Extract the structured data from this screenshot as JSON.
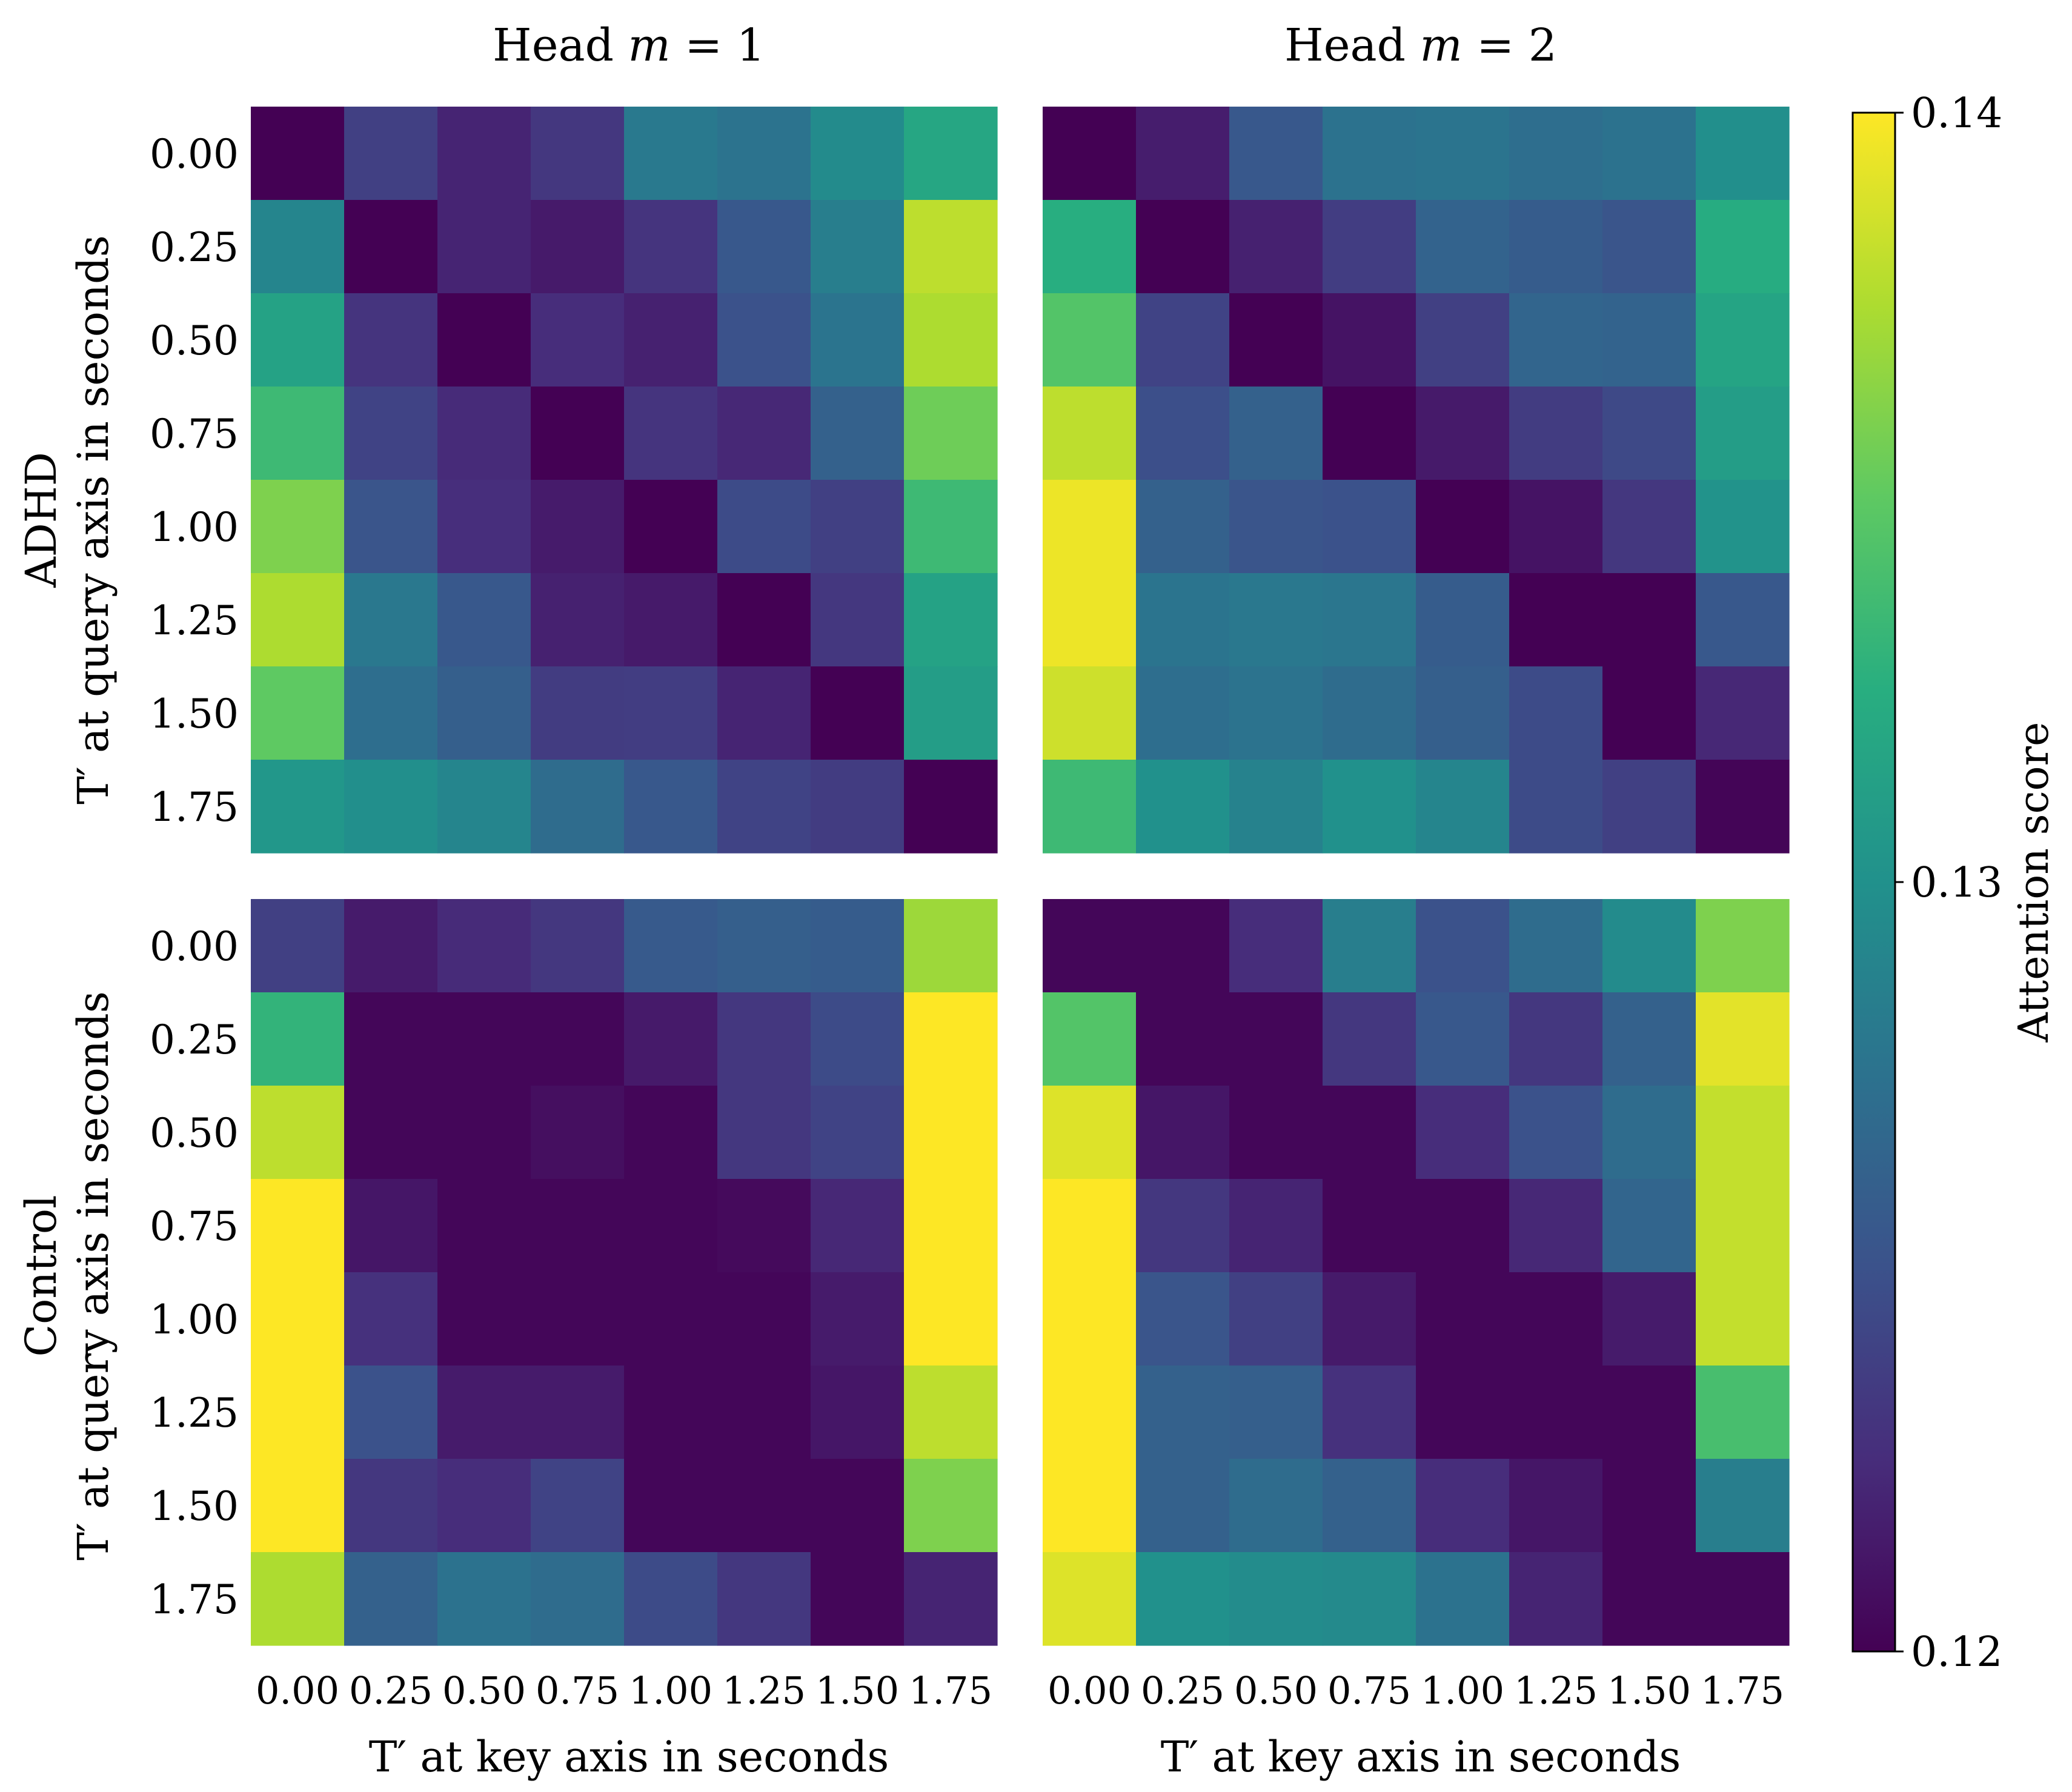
{
  "chart_data": {
    "type": "heatmap",
    "value_label": "Attention score",
    "colormap": "viridis",
    "vmin": 0.12,
    "vmax": 0.14,
    "colorbar_ticks": [
      {
        "value": 0.14,
        "label": "0.14"
      },
      {
        "value": 0.13,
        "label": "0.13"
      },
      {
        "value": 0.12,
        "label": "0.12"
      }
    ],
    "x_ticks": [
      "0.00",
      "0.25",
      "0.50",
      "0.75",
      "1.00",
      "1.25",
      "1.50",
      "1.75"
    ],
    "y_ticks": [
      "0.00",
      "0.25",
      "0.50",
      "0.75",
      "1.00",
      "1.25",
      "1.50",
      "1.75"
    ],
    "xlabel": "T′ at key axis in seconds",
    "ylabel": "T′ at query axis in seconds",
    "columns": [
      {
        "title_prefix": "Head ",
        "title_var": "m",
        "title_rest": " = 1"
      },
      {
        "title_prefix": "Head ",
        "title_var": "m",
        "title_rest": " = 2"
      }
    ],
    "rows": [
      "ADHD",
      "Control"
    ],
    "panels": [
      {
        "group": "ADHD",
        "head": 1,
        "matrix": [
          [
            0.12,
            0.1238,
            0.122,
            0.1232,
            0.1281,
            0.1276,
            0.1295,
            0.1318
          ],
          [
            0.129,
            0.12,
            0.122,
            0.1214,
            0.123,
            0.1255,
            0.1285,
            0.138
          ],
          [
            0.1315,
            0.123,
            0.12,
            0.1225,
            0.1218,
            0.125,
            0.1277,
            0.1375
          ],
          [
            0.1335,
            0.124,
            0.1224,
            0.12,
            0.123,
            0.1222,
            0.1262,
            0.1355
          ],
          [
            0.136,
            0.1252,
            0.1226,
            0.1215,
            0.12,
            0.1245,
            0.1238,
            0.1335
          ],
          [
            0.1375,
            0.128,
            0.1255,
            0.1218,
            0.1214,
            0.12,
            0.1232,
            0.1315
          ],
          [
            0.135,
            0.1272,
            0.126,
            0.1235,
            0.1236,
            0.122,
            0.12,
            0.131
          ],
          [
            0.1305,
            0.1298,
            0.129,
            0.127,
            0.1255,
            0.124,
            0.1235,
            0.12
          ]
        ]
      },
      {
        "group": "ADHD",
        "head": 2,
        "matrix": [
          [
            0.12,
            0.1216,
            0.1255,
            0.1275,
            0.1277,
            0.1272,
            0.1275,
            0.1298
          ],
          [
            0.1325,
            0.12,
            0.1218,
            0.1236,
            0.1263,
            0.1258,
            0.1252,
            0.1323
          ],
          [
            0.1345,
            0.124,
            0.12,
            0.121,
            0.1238,
            0.1265,
            0.1263,
            0.1316
          ],
          [
            0.138,
            0.1248,
            0.1262,
            0.12,
            0.1214,
            0.1235,
            0.1244,
            0.131
          ],
          [
            0.1395,
            0.1262,
            0.1252,
            0.125,
            0.12,
            0.121,
            0.1232,
            0.1302
          ],
          [
            0.1395,
            0.1277,
            0.128,
            0.1278,
            0.1258,
            0.12,
            0.12,
            0.1255
          ],
          [
            0.1385,
            0.1272,
            0.1276,
            0.127,
            0.126,
            0.1245,
            0.12,
            0.1222
          ],
          [
            0.1335,
            0.13,
            0.1288,
            0.13,
            0.129,
            0.1245,
            0.1238,
            0.1202
          ]
        ]
      },
      {
        "group": "Control",
        "head": 1,
        "matrix": [
          [
            0.1238,
            0.1215,
            0.1224,
            0.1232,
            0.1256,
            0.126,
            0.1258,
            0.137
          ],
          [
            0.133,
            0.1203,
            0.1203,
            0.1203,
            0.1214,
            0.1232,
            0.1245,
            0.14
          ],
          [
            0.138,
            0.1203,
            0.1203,
            0.1208,
            0.1203,
            0.1232,
            0.124,
            0.14
          ],
          [
            0.14,
            0.1212,
            0.1203,
            0.1203,
            0.1203,
            0.1205,
            0.1222,
            0.14
          ],
          [
            0.14,
            0.1228,
            0.1203,
            0.1203,
            0.1203,
            0.1203,
            0.1215,
            0.14
          ],
          [
            0.14,
            0.125,
            0.1215,
            0.1215,
            0.1203,
            0.1203,
            0.1212,
            0.138
          ],
          [
            0.14,
            0.1232,
            0.1225,
            0.124,
            0.1203,
            0.1203,
            0.1203,
            0.136
          ],
          [
            0.1375,
            0.1262,
            0.1275,
            0.127,
            0.1245,
            0.1232,
            0.1203,
            0.122
          ]
        ]
      },
      {
        "group": "Control",
        "head": 2,
        "matrix": [
          [
            0.1203,
            0.1203,
            0.1225,
            0.1285,
            0.125,
            0.127,
            0.1295,
            0.136
          ],
          [
            0.1345,
            0.1203,
            0.1203,
            0.1232,
            0.1255,
            0.1232,
            0.1262,
            0.1392
          ],
          [
            0.139,
            0.1212,
            0.1203,
            0.1203,
            0.1225,
            0.125,
            0.127,
            0.1382
          ],
          [
            0.14,
            0.1232,
            0.122,
            0.1203,
            0.1203,
            0.1222,
            0.1265,
            0.1382
          ],
          [
            0.14,
            0.1252,
            0.1238,
            0.1214,
            0.1203,
            0.1203,
            0.1215,
            0.1382
          ],
          [
            0.14,
            0.1262,
            0.126,
            0.1228,
            0.1203,
            0.1203,
            0.1203,
            0.134
          ],
          [
            0.14,
            0.1262,
            0.127,
            0.1262,
            0.1225,
            0.1212,
            0.1203,
            0.1285
          ],
          [
            0.139,
            0.13,
            0.1296,
            0.1294,
            0.1275,
            0.122,
            0.1203,
            0.1203
          ]
        ]
      }
    ]
  }
}
